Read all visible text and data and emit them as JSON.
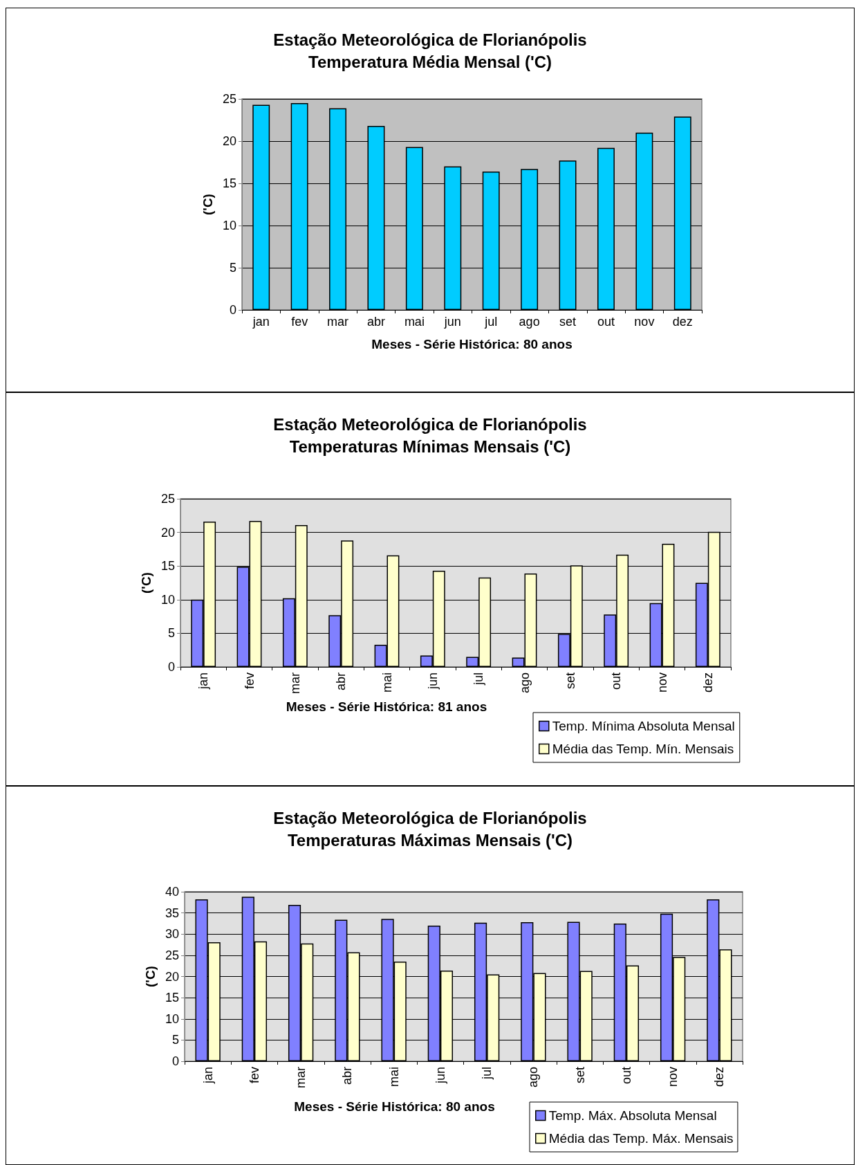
{
  "chart_data": [
    {
      "type": "bar",
      "title": "Estação Meteorológica de Florianópolis",
      "subtitle": "Temperatura Média Mensal ('C)",
      "xlabel": "Meses - Série Histórica: 80 anos",
      "ylabel": "('C)",
      "categories": [
        "jan",
        "fev",
        "mar",
        "abr",
        "mai",
        "jun",
        "jul",
        "ago",
        "set",
        "out",
        "nov",
        "dez"
      ],
      "series": [
        {
          "color": "#00ccff",
          "values": [
            24.3,
            24.5,
            23.9,
            21.8,
            19.3,
            17.0,
            16.4,
            16.7,
            17.7,
            19.2,
            21.0,
            22.9
          ]
        }
      ],
      "ylim": [
        0,
        25
      ],
      "yticks": [
        0,
        5,
        10,
        15,
        20,
        25
      ],
      "grid": "y",
      "legend": false
    },
    {
      "type": "bar",
      "title": "Estação Meteorológica de Florianópolis",
      "subtitle": "Temperaturas Mínimas Mensais ('C)",
      "xlabel": "Meses - Série Histórica: 81 anos",
      "ylabel": "('C)",
      "categories": [
        "jan",
        "fev",
        "mar",
        "abr",
        "mai",
        "jun",
        "jul",
        "ago",
        "set",
        "out",
        "nov",
        "dez"
      ],
      "series": [
        {
          "name": "Temp. Mínima Absoluta Mensal",
          "color": "#8080ff",
          "values": [
            10.0,
            14.9,
            10.2,
            7.7,
            3.3,
            1.7,
            1.5,
            1.4,
            4.9,
            7.8,
            9.5,
            12.5
          ]
        },
        {
          "name": "Média das Temp. Mín. Mensais",
          "color": "#ffffcc",
          "values": [
            21.6,
            21.7,
            21.1,
            18.8,
            16.6,
            14.3,
            13.3,
            13.9,
            15.1,
            16.7,
            18.3,
            20.1
          ]
        }
      ],
      "ylim": [
        0,
        25
      ],
      "yticks": [
        0,
        5,
        10,
        15,
        20,
        25
      ],
      "grid": "y",
      "legend": "bottom right"
    },
    {
      "type": "bar",
      "title": "Estação Meteorológica de Florianópolis",
      "subtitle": "Temperaturas Máximas Mensais ('C)",
      "xlabel": "Meses - Série Histórica: 80 anos",
      "ylabel": "('C)",
      "categories": [
        "jan",
        "fev",
        "mar",
        "abr",
        "mai",
        "jun",
        "jul",
        "ago",
        "set",
        "out",
        "nov",
        "dez"
      ],
      "series": [
        {
          "name": "Temp. Máx. Absoluta Mensal",
          "color": "#8080ff",
          "values": [
            38.2,
            38.8,
            36.9,
            33.4,
            33.6,
            32.0,
            32.7,
            32.8,
            32.9,
            32.5,
            34.8,
            38.2
          ]
        },
        {
          "name": "Média das Temp. Máx. Mensais",
          "color": "#ffffcc",
          "values": [
            28.1,
            28.3,
            27.8,
            25.7,
            23.5,
            21.4,
            20.5,
            20.8,
            21.3,
            22.6,
            24.6,
            26.4
          ]
        }
      ],
      "ylim": [
        0,
        40
      ],
      "yticks": [
        0,
        5,
        10,
        15,
        20,
        25,
        30,
        35,
        40
      ],
      "grid": "y",
      "legend": "bottom right"
    }
  ]
}
